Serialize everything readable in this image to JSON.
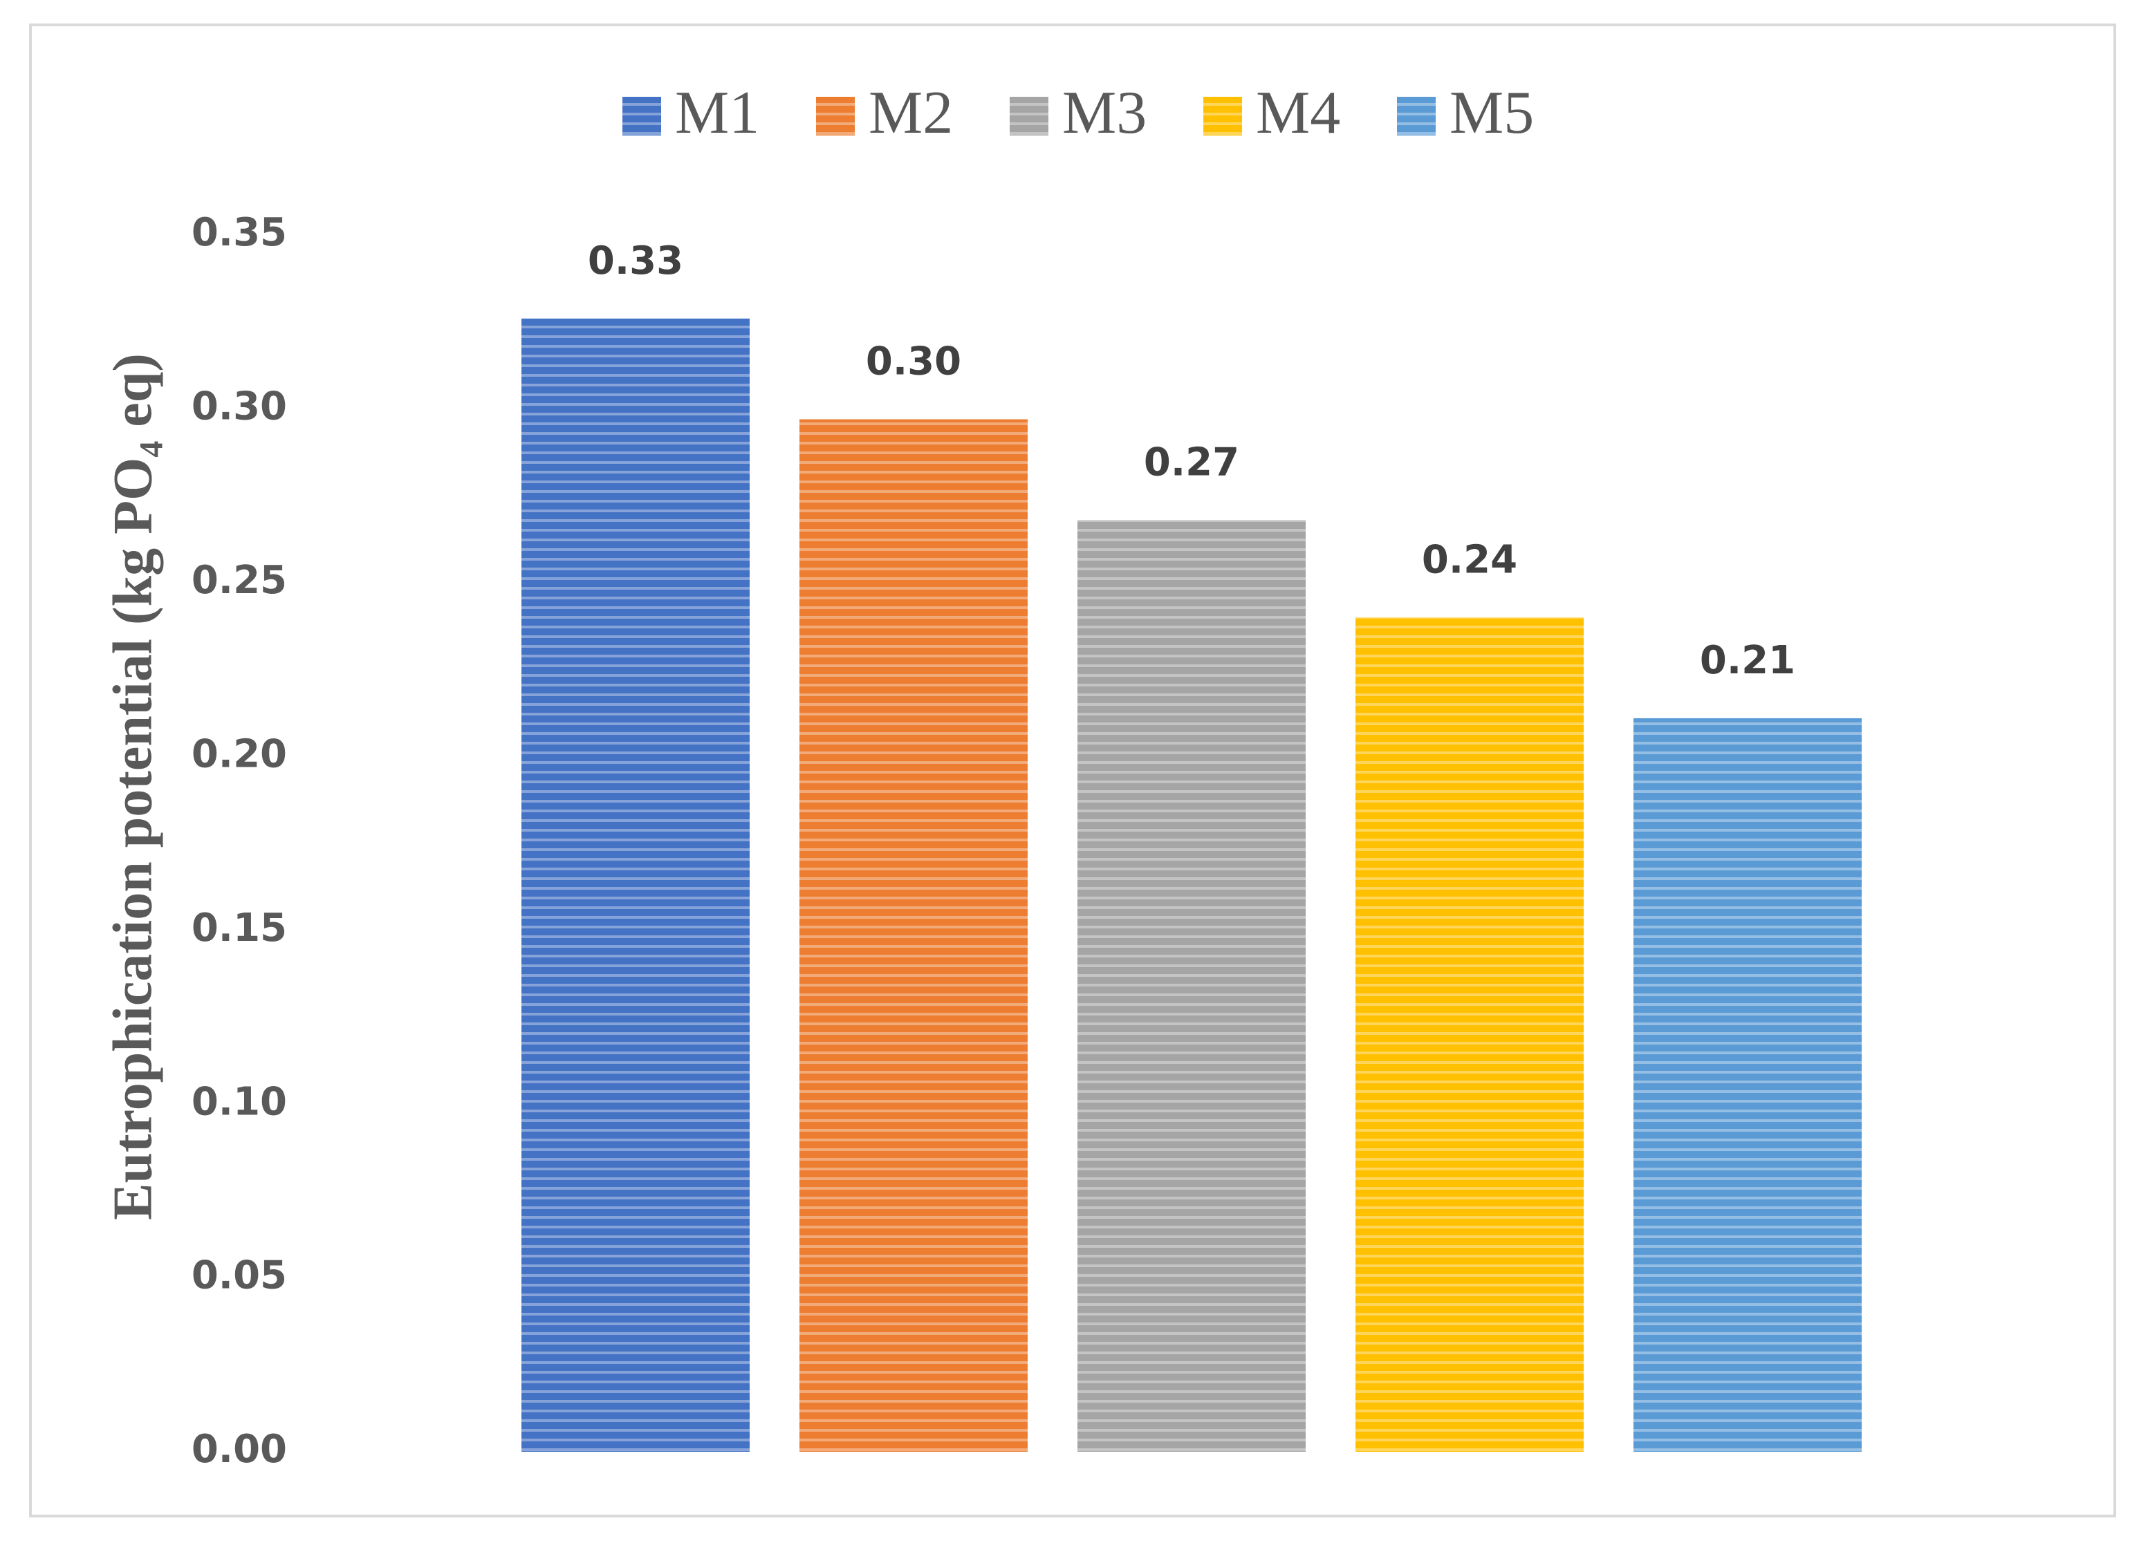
{
  "chart_data": {
    "type": "bar",
    "y_label": "Eutrophication potential (kg PO₄ eq)",
    "categories": [
      null
    ],
    "series": [
      {
        "name": "M1",
        "color": "#4472c4",
        "values": [
          0.326
        ],
        "value_labels": [
          "0.33"
        ]
      },
      {
        "name": "M2",
        "color": "#ed7d31",
        "values": [
          0.297
        ],
        "value_labels": [
          "0.30"
        ]
      },
      {
        "name": "M3",
        "color": "#a5a5a5",
        "values": [
          0.268
        ],
        "value_labels": [
          "0.27"
        ]
      },
      {
        "name": "M4",
        "color": "#ffc000",
        "values": [
          0.24
        ],
        "value_labels": [
          "0.24"
        ]
      },
      {
        "name": "M5",
        "color": "#5b9bd5",
        "values": [
          0.211
        ],
        "value_labels": [
          "0.21"
        ]
      }
    ],
    "ylim": [
      0,
      0.35
    ],
    "yticks": [
      {
        "value": 0,
        "label": "0.00"
      },
      {
        "value": 0.05,
        "label": "0.05"
      },
      {
        "value": 0.1,
        "label": "0.10"
      },
      {
        "value": 0.15,
        "label": "0.15"
      },
      {
        "value": 0.2,
        "label": "0.20"
      },
      {
        "value": 0.25,
        "label": "0.25"
      },
      {
        "value": 0.3,
        "label": "0.30"
      },
      {
        "value": 0.35,
        "label": "0.35"
      }
    ],
    "legend": "top",
    "grid": false
  }
}
